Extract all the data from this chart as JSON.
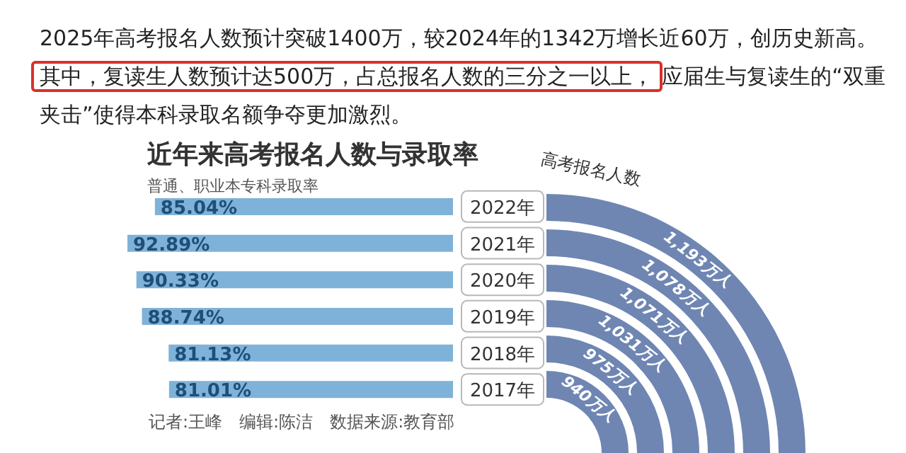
{
  "chart_data": [
    {
      "type": "bar",
      "orientation": "horizontal",
      "title": "近年来高考报名人数与录取率",
      "subtitle": "普通、职业本专科录取率",
      "annotations": [
        "2025年高考报名人数预计突破1400万，较2024年的1342万增长近60万，创历史新高。",
        "其中，复读生人数预计达500万，占总报名人数的三分之一以上，",
        "应届生与复读生的“双重夹击”使得本科录取名额争夺更加激烈。",
        "记者:王峰　编辑:陈洁　数据来源:教育部"
      ],
      "categories": [
        "2022年",
        "2021年",
        "2020年",
        "2019年",
        "2018年",
        "2017年"
      ],
      "values": [
        85.04,
        92.89,
        90.33,
        88.74,
        81.13,
        81.01
      ],
      "value_labels": [
        "85.04%",
        "92.89%",
        "90.33%",
        "88.74%",
        "81.13%",
        "81.01%"
      ],
      "color": "#7fb2d8",
      "tick_labels": "y"
    },
    {
      "type": "other",
      "title": "高考报名人数",
      "values": [
        1193,
        1078,
        1071,
        1031,
        975,
        940
      ],
      "value_labels": [
        "1,193万人",
        "1,078万人",
        "1,071万人",
        "1,031万人",
        "975万人",
        "940万人"
      ],
      "color": "#6f86b3"
    }
  ]
}
